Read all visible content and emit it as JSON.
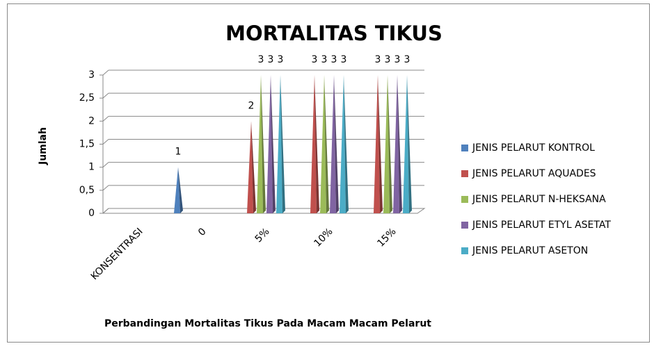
{
  "chart_data": {
    "type": "pyramid",
    "title": "MORTALITAS TIKUS",
    "y_label": "Jumlah",
    "x_label": "Perbandingan Mortalitas Tikus Pada Macam Macam Pelarut",
    "categories": [
      "KONSENTRASI",
      "0",
      "5%",
      "10%",
      "15%"
    ],
    "series": [
      {
        "name": "JENIS PELARUT KONTROL",
        "color": "#4f81bd",
        "values": [
          null,
          1,
          null,
          null,
          null
        ]
      },
      {
        "name": "JENIS PELARUT AQUADES",
        "color": "#c0504d",
        "values": [
          null,
          null,
          2,
          3,
          3
        ]
      },
      {
        "name": "JENIS PELARUT N-HEKSANA",
        "color": "#9bbb59",
        "values": [
          null,
          null,
          3,
          3,
          3
        ]
      },
      {
        "name": "JENIS PELARUT ETYL ASETAT",
        "color": "#8064a2",
        "values": [
          null,
          null,
          3,
          3,
          3
        ]
      },
      {
        "name": "JENIS PELARUT ASETON",
        "color": "#4bacc6",
        "values": [
          null,
          null,
          3,
          3,
          3
        ]
      }
    ],
    "ylim": [
      0,
      3
    ],
    "yticks": [
      0,
      {
        "value": 0.5,
        "label": "0,5"
      },
      1,
      {
        "value": 1.5,
        "label": "1,5"
      },
      2,
      {
        "value": 2.5,
        "label": "2,5"
      },
      3
    ],
    "grid": true,
    "legend": "right"
  }
}
